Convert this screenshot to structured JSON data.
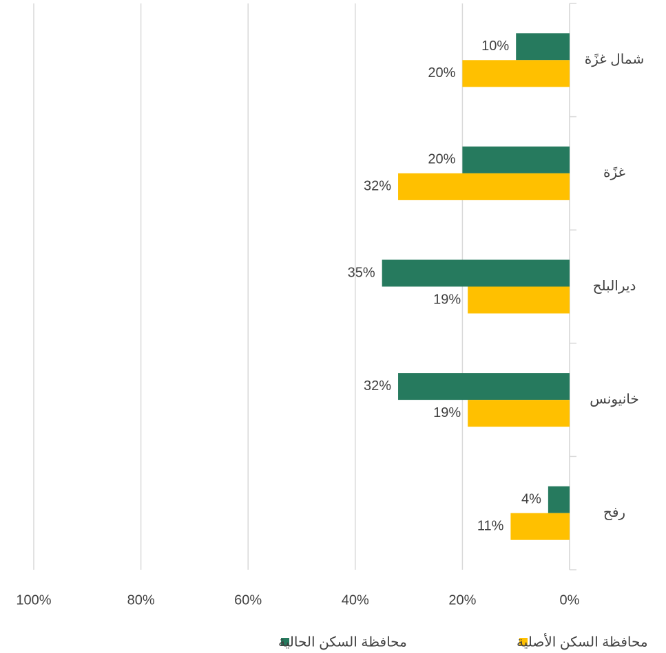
{
  "chart_data": {
    "type": "bar",
    "orientation": "horizontal",
    "x_reversed": true,
    "categories": [
      "شمال غزًة",
      "غزًة",
      "ديرالبلح",
      "خانيونس",
      "رفح"
    ],
    "series": [
      {
        "name": "محافظة السكن الحالية",
        "color": "#267a5e",
        "values": [
          10,
          20,
          35,
          32,
          4
        ],
        "value_labels": [
          "10%",
          "20%",
          "35%",
          "32%",
          "4%"
        ]
      },
      {
        "name": "محافظة السكن الأصلية",
        "color": "#ffc000",
        "values": [
          20,
          32,
          19,
          19,
          11
        ],
        "value_labels": [
          "20%",
          "32%",
          "19%",
          "19%",
          "11%"
        ]
      }
    ],
    "xlim": [
      0,
      100
    ],
    "xticks": [
      {
        "value": 0,
        "label": "0%"
      },
      {
        "value": 20,
        "label": "20%"
      },
      {
        "value": 40,
        "label": "40%"
      },
      {
        "value": 60,
        "label": "60%"
      },
      {
        "value": 80,
        "label": "80%"
      },
      {
        "value": 100,
        "label": "100%"
      }
    ],
    "grid": true,
    "legend": "bottom"
  }
}
